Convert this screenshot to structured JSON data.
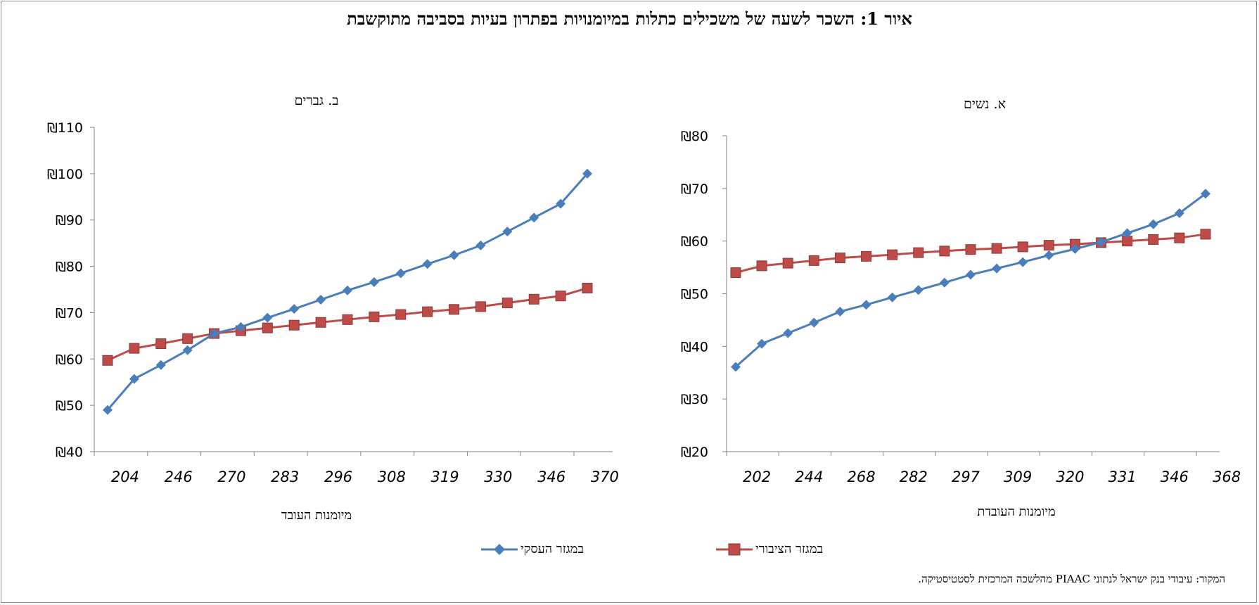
{
  "title": "איור 1: השכר לשעה של משכילים כתלות במיומנויות בפתרון בעיות בסביבה מתוקשבת",
  "source": "המקור: עיבודי בנק ישראל לנתוני PIAAC מהלשכה המרכזית לסטטיסטיקה.",
  "legend": {
    "private": "במגזר העסקי",
    "public": "במגזר הציבורי"
  },
  "colors": {
    "private": "#4a7ebb",
    "public": "#be4b48"
  },
  "chart_data": [
    {
      "type": "line",
      "title": "ב. גברים",
      "xlabel": "מיומנות העובד",
      "ylabel": "",
      "ylim": [
        40,
        110
      ],
      "ytick_step": 10,
      "ytick_prefix": "₪",
      "xtick_labels": [
        "204",
        "246",
        "270",
        "283",
        "296",
        "308",
        "319",
        "330",
        "346",
        "370"
      ],
      "x_count": 19,
      "series": [
        {
          "name": "במגזר העסקי",
          "key": "private",
          "marker": "diamond",
          "values": [
            49,
            55.7,
            58.7,
            61.9,
            65.5,
            66.9,
            68.9,
            70.8,
            72.8,
            74.8,
            76.6,
            78.5,
            80.5,
            82.4,
            84.5,
            87.5,
            90.5,
            93.5,
            100
          ]
        },
        {
          "name": "במגזר הציבורי",
          "key": "public",
          "marker": "square",
          "values": [
            59.7,
            62.3,
            63.3,
            64.4,
            65.5,
            66.1,
            66.7,
            67.3,
            67.9,
            68.5,
            69.1,
            69.6,
            70.2,
            70.7,
            71.3,
            72.1,
            72.9,
            73.6,
            75.3
          ]
        }
      ]
    },
    {
      "type": "line",
      "title": "א. נשים",
      "xlabel": "מיומנות העובדת",
      "ylabel": "",
      "ylim": [
        20,
        80
      ],
      "ytick_step": 10,
      "ytick_prefix": "₪",
      "xtick_labels": [
        "202",
        "244",
        "268",
        "282",
        "297",
        "309",
        "320",
        "331",
        "346",
        "368"
      ],
      "x_count": 19,
      "series": [
        {
          "name": "במגזר העסקי",
          "key": "private",
          "marker": "diamond",
          "values": [
            36.1,
            40.5,
            42.5,
            44.5,
            46.6,
            47.9,
            49.3,
            50.7,
            52.1,
            53.6,
            54.8,
            56.0,
            57.3,
            58.5,
            59.8,
            61.5,
            63.2,
            65.3,
            69.0
          ]
        },
        {
          "name": "במגזר הציבורי",
          "key": "public",
          "marker": "square",
          "values": [
            54.0,
            55.3,
            55.8,
            56.3,
            56.8,
            57.1,
            57.4,
            57.8,
            58.1,
            58.4,
            58.6,
            58.9,
            59.2,
            59.4,
            59.7,
            60.0,
            60.3,
            60.6,
            61.3
          ]
        }
      ]
    }
  ]
}
